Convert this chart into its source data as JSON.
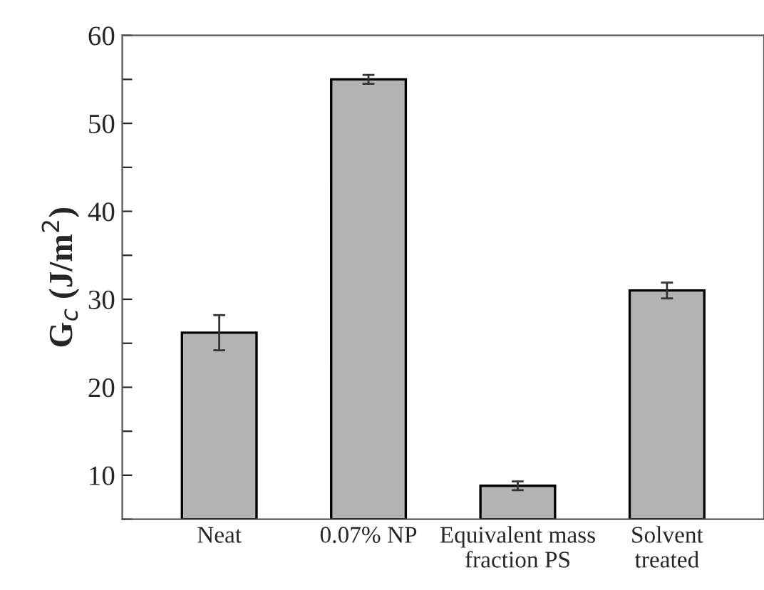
{
  "chart_data": {
    "type": "bar",
    "ylabel": "G$_{c}$ (J/m$^{2}$)",
    "categories": [
      "Neat",
      "0.07% NP",
      "Equivalent mass\nfraction PS",
      "Solvent\ntreated"
    ],
    "values": [
      26.2,
      55.0,
      8.8,
      31.0
    ],
    "errors": [
      2,
      0.5,
      0.5,
      0.9
    ],
    "color": "#b3b3b3",
    "ylim": [
      5,
      60
    ],
    "yticks": [
      {
        "value": 5,
        "label": null
      },
      10,
      {
        "value": 15,
        "label": null
      },
      20,
      {
        "value": 25,
        "label": null
      },
      30,
      {
        "value": 35,
        "label": null
      },
      40,
      {
        "value": 45,
        "label": null
      },
      50,
      {
        "value": 55,
        "label": null
      },
      60
    ],
    "grid": false
  }
}
